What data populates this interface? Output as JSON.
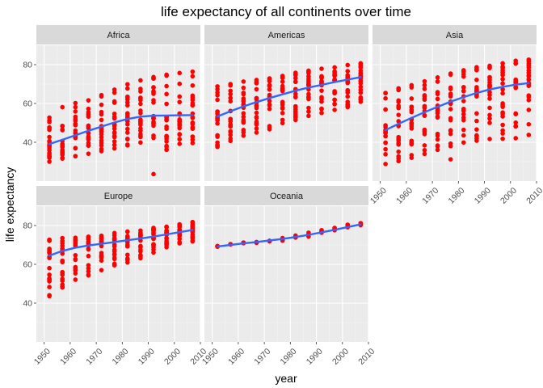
{
  "chart_data": {
    "type": "scatter",
    "title": "life expectancy of all continents over time",
    "xlabel": "year",
    "ylabel": "life expectancy",
    "xlim": [
      1947,
      2010
    ],
    "ylim": [
      20,
      90
    ],
    "xticks": [
      1950,
      1960,
      1970,
      1980,
      1990,
      2000,
      2010
    ],
    "yticks": [
      40,
      60,
      80
    ],
    "grid": true,
    "point_color": "#ff0000",
    "smooth_color": "#3366ff",
    "panel_bg": "#ebebeb",
    "strip_bg": "#d9d9d9",
    "panels": [
      {
        "name": "Africa",
        "years": [
          1952,
          1957,
          1962,
          1967,
          1972,
          1977,
          1982,
          1987,
          1992,
          1997,
          2002,
          2007
        ],
        "min": [
          30.0,
          31.6,
          32.8,
          34.1,
          35.4,
          36.8,
          38.4,
          39.9,
          23.6,
          36.1,
          39.2,
          39.6
        ],
        "max": [
          52.7,
          58.1,
          60.2,
          61.6,
          64.3,
          67.1,
          69.9,
          71.9,
          73.6,
          74.8,
          75.7,
          76.4
        ],
        "median": [
          38.8,
          40.6,
          42.6,
          44.7,
          47.0,
          49.3,
          50.8,
          51.6,
          52.4,
          52.8,
          51.2,
          52.9
        ],
        "outliers": [
          [
            1992,
            23.6
          ]
        ],
        "smooth": [
          [
            1952,
            39.1
          ],
          [
            1957,
            41.3
          ],
          [
            1962,
            43.6
          ],
          [
            1967,
            45.9
          ],
          [
            1972,
            48.1
          ],
          [
            1977,
            50.2
          ],
          [
            1982,
            52.0
          ],
          [
            1987,
            53.2
          ],
          [
            1992,
            53.7
          ],
          [
            1997,
            53.8
          ],
          [
            2002,
            53.9
          ],
          [
            2007,
            54.0
          ]
        ]
      },
      {
        "name": "Americas",
        "years": [
          1952,
          1957,
          1962,
          1967,
          1972,
          1977,
          1982,
          1987,
          1992,
          1997,
          2002,
          2007
        ],
        "min": [
          37.6,
          40.7,
          43.4,
          45.0,
          46.7,
          49.9,
          51.5,
          53.6,
          55.1,
          56.7,
          58.1,
          60.9
        ],
        "max": [
          68.8,
          70.0,
          71.3,
          72.1,
          72.9,
          74.2,
          75.8,
          76.9,
          77.9,
          78.6,
          79.8,
          80.7
        ],
        "median": [
          54.7,
          56.1,
          58.3,
          60.5,
          63.4,
          66.4,
          67.4,
          69.5,
          69.9,
          72.1,
          72.0,
          72.9
        ],
        "outliers": [],
        "smooth": [
          [
            1952,
            53.3
          ],
          [
            1957,
            56.0
          ],
          [
            1962,
            58.5
          ],
          [
            1967,
            60.7
          ],
          [
            1972,
            62.8
          ],
          [
            1977,
            64.7
          ],
          [
            1982,
            66.6
          ],
          [
            1987,
            68.2
          ],
          [
            1992,
            69.6
          ],
          [
            1997,
            71.0
          ],
          [
            2002,
            72.3
          ],
          [
            2007,
            73.6
          ]
        ]
      },
      {
        "name": "Asia",
        "years": [
          1952,
          1957,
          1962,
          1967,
          1972,
          1977,
          1982,
          1987,
          1992,
          1997,
          2002,
          2007
        ],
        "min": [
          28.8,
          30.3,
          32.0,
          34.0,
          36.1,
          31.2,
          39.9,
          40.8,
          41.7,
          41.8,
          42.1,
          43.8
        ],
        "max": [
          65.4,
          67.8,
          69.4,
          71.4,
          73.4,
          75.4,
          77.1,
          78.7,
          79.4,
          80.7,
          82.0,
          82.6
        ],
        "median": [
          44.9,
          48.3,
          49.3,
          53.7,
          56.2,
          60.8,
          63.7,
          66.3,
          68.7,
          70.3,
          71.0,
          72.4
        ],
        "outliers": [
          [
            1977,
            31.2
          ]
        ],
        "smooth": [
          [
            1952,
            46.3
          ],
          [
            1957,
            49.5
          ],
          [
            1962,
            52.6
          ],
          [
            1967,
            55.5
          ],
          [
            1972,
            58.3
          ],
          [
            1977,
            60.9
          ],
          [
            1982,
            63.3
          ],
          [
            1987,
            65.4
          ],
          [
            1992,
            67.2
          ],
          [
            1997,
            68.6
          ],
          [
            2002,
            69.7
          ],
          [
            2007,
            70.5
          ]
        ]
      },
      {
        "name": "Europe",
        "years": [
          1952,
          1957,
          1962,
          1967,
          1972,
          1977,
          1982,
          1987,
          1992,
          1997,
          2002,
          2007
        ],
        "min": [
          43.6,
          48.1,
          52.1,
          54.3,
          57.0,
          59.5,
          61.0,
          63.1,
          66.1,
          68.8,
          70.8,
          71.8
        ],
        "max": [
          72.7,
          73.5,
          73.7,
          74.2,
          74.7,
          76.1,
          76.9,
          77.4,
          78.8,
          79.4,
          80.6,
          81.8
        ],
        "median": [
          65.9,
          67.7,
          69.5,
          70.6,
          70.9,
          72.3,
          73.5,
          74.8,
          75.5,
          76.1,
          77.5,
          78.6
        ],
        "outliers": [],
        "smooth": [
          [
            1952,
            64.5
          ],
          [
            1957,
            66.9
          ],
          [
            1962,
            68.6
          ],
          [
            1967,
            69.7
          ],
          [
            1972,
            70.6
          ],
          [
            1977,
            71.5
          ],
          [
            1982,
            72.4
          ],
          [
            1987,
            73.3
          ],
          [
            1992,
            74.3
          ],
          [
            1997,
            75.4
          ],
          [
            2002,
            76.6
          ],
          [
            2007,
            77.7
          ]
        ]
      },
      {
        "name": "Oceania",
        "years": [
          1952,
          1957,
          1962,
          1967,
          1972,
          1977,
          1982,
          1987,
          1992,
          1997,
          2002,
          2007
        ],
        "min": [
          69.1,
          70.3,
          70.9,
          71.1,
          71.9,
          72.2,
          73.8,
          74.3,
          76.3,
          77.6,
          79.1,
          80.2
        ],
        "max": [
          69.4,
          70.4,
          71.2,
          71.5,
          72.1,
          73.5,
          74.8,
          76.3,
          77.6,
          78.8,
          80.4,
          81.2
        ],
        "median": [
          69.3,
          70.3,
          71.1,
          71.3,
          72.0,
          72.9,
          74.3,
          75.3,
          77.0,
          78.2,
          79.7,
          80.7
        ],
        "outliers": [],
        "smooth": [
          [
            1952,
            69.2
          ],
          [
            1957,
            70.0
          ],
          [
            1962,
            70.8
          ],
          [
            1967,
            71.5
          ],
          [
            1972,
            72.3
          ],
          [
            1977,
            73.1
          ],
          [
            1982,
            74.1
          ],
          [
            1987,
            75.2
          ],
          [
            1992,
            76.5
          ],
          [
            1997,
            77.8
          ],
          [
            2002,
            79.2
          ],
          [
            2007,
            80.6
          ]
        ]
      }
    ]
  }
}
